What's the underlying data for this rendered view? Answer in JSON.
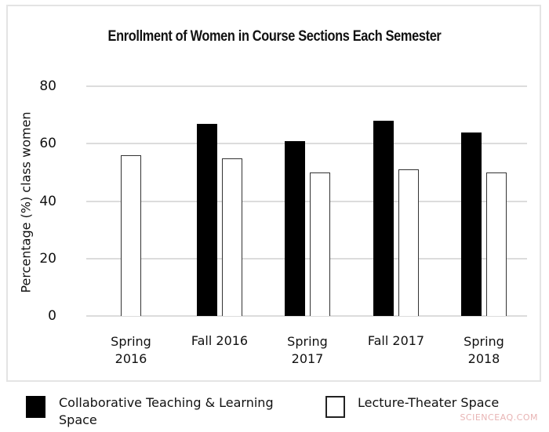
{
  "chart_data": {
    "type": "bar",
    "title": "Enrollment of Women in Course Sections Each Semester",
    "xlabel": "",
    "ylabel": "Percentage (%) class women",
    "ylim": [
      0,
      80
    ],
    "yticks": [
      "0",
      "20",
      "40",
      "60",
      "80"
    ],
    "grid": true,
    "legend_position": "bottom",
    "categories": [
      "Spring 2016",
      "Fall 2016",
      "Spring 2017",
      "Fall 2017",
      "Spring 2018"
    ],
    "category_labels": [
      [
        "Spring",
        "2016"
      ],
      [
        "Fall 2016"
      ],
      [
        "Spring",
        "2017"
      ],
      [
        "Fall 2017"
      ],
      [
        "Spring",
        "2018"
      ]
    ],
    "series": [
      {
        "name": "Collaborative Teaching & Learning Space",
        "color": "#000000",
        "values": [
          null,
          67,
          61,
          68,
          64
        ]
      },
      {
        "name": "Lecture-Theater Space",
        "color": "#ffffff",
        "values": [
          56,
          55,
          50,
          51,
          50
        ]
      }
    ]
  },
  "legend": {
    "items": [
      {
        "label_line1": "Collaborative Teaching & Learning",
        "label_line2": "Space"
      },
      {
        "label_line1": "Lecture-Theater Space"
      }
    ]
  },
  "watermark": "SCIENCEAQ.COM"
}
